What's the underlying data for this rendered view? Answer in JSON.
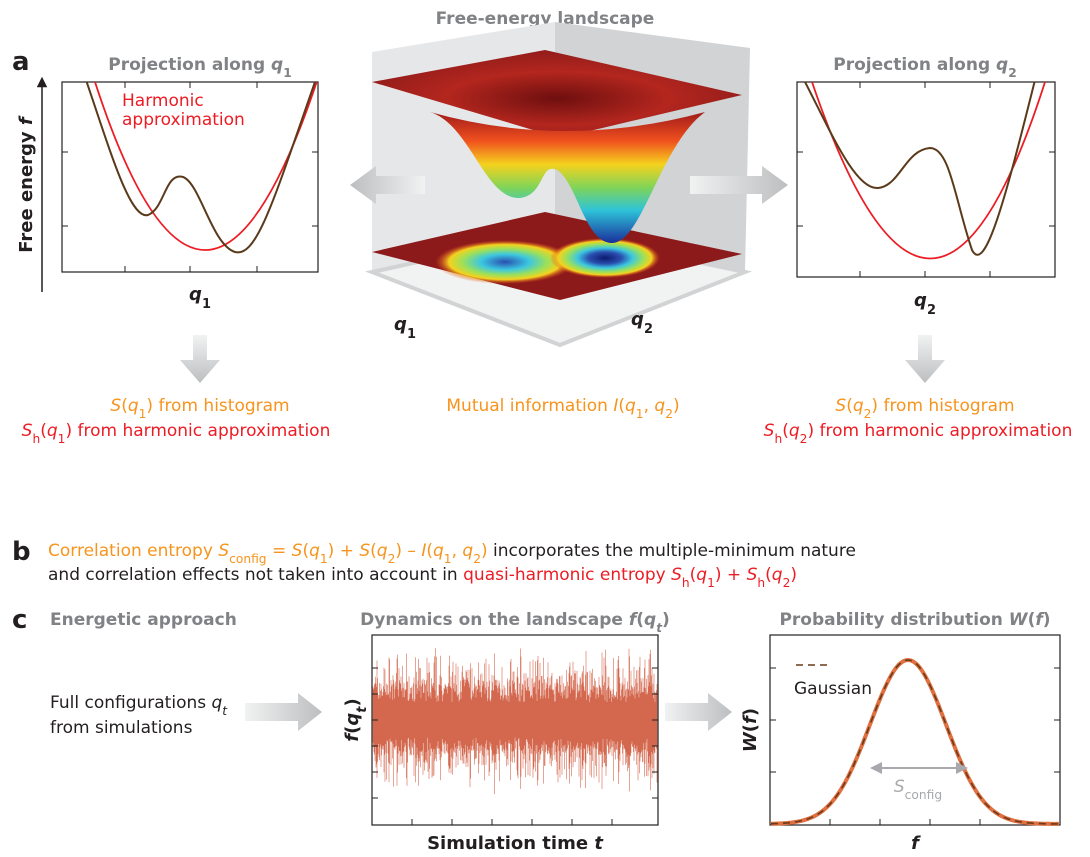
{
  "header": {
    "title": "Free-energy landscape"
  },
  "panel_a": {
    "label": "a",
    "left": {
      "title": [
        "Projection along ",
        {
          "t": "q",
          "s": "i"
        },
        {
          "t": "1",
          "s": "sub"
        }
      ],
      "y_axis": [
        "Free energy ",
        {
          "t": "f",
          "s": "i"
        }
      ],
      "x_axis": [
        {
          "t": "q",
          "s": "i"
        },
        {
          "t": "1",
          "s": "sub"
        }
      ],
      "annotation": [
        "Harmonic",
        "approximation"
      ]
    },
    "center": {
      "x_axis": [
        {
          "t": "q",
          "s": "i"
        },
        {
          "t": "1",
          "s": "sub"
        }
      ],
      "y_axis": [
        {
          "t": "q",
          "s": "i"
        },
        {
          "t": "2",
          "s": "sub"
        }
      ]
    },
    "right": {
      "title": [
        "Projection along ",
        {
          "t": "q",
          "s": "i"
        },
        {
          "t": "2",
          "s": "sub"
        }
      ],
      "x_axis": [
        {
          "t": "q",
          "s": "i"
        },
        {
          "t": "2",
          "s": "sub"
        }
      ]
    },
    "captions": {
      "left": [
        [
          {
            "t": "S",
            "s": "i"
          },
          "(",
          {
            "t": "q",
            "s": "i"
          },
          {
            "t": "1",
            "s": "sub"
          },
          ") from histogram"
        ],
        [
          {
            "t": "S",
            "s": "i"
          },
          {
            "t": "h",
            "s": "sub"
          },
          "(",
          {
            "t": "q",
            "s": "i"
          },
          {
            "t": "1",
            "s": "sub"
          },
          ") from harmonic approximation"
        ]
      ],
      "center": [
        "Mutual information ",
        {
          "t": "I",
          "s": "i"
        },
        "(",
        {
          "t": "q",
          "s": "i"
        },
        {
          "t": "1",
          "s": "sub"
        },
        ", ",
        {
          "t": "q",
          "s": "i"
        },
        {
          "t": "2",
          "s": "sub"
        },
        ")"
      ],
      "right": [
        [
          {
            "t": "S",
            "s": "i"
          },
          "(",
          {
            "t": "q",
            "s": "i"
          },
          {
            "t": "2",
            "s": "sub"
          },
          ") from histogram"
        ],
        [
          {
            "t": "S",
            "s": "i"
          },
          {
            "t": "h",
            "s": "sub"
          },
          "(",
          {
            "t": "q",
            "s": "i"
          },
          {
            "t": "2",
            "s": "sub"
          },
          ") from harmonic approximation"
        ]
      ]
    }
  },
  "panel_b": {
    "label": "b",
    "lines": [
      [
        {
          "color": "#f7941d",
          "runs": [
            "Correlation entropy ",
            {
              "t": "S",
              "s": "i"
            },
            {
              "t": "config",
              "s": "sub"
            },
            " = ",
            {
              "t": "S",
              "s": "i"
            },
            "(",
            {
              "t": "q",
              "s": "i"
            },
            {
              "t": "1",
              "s": "sub"
            },
            ") + ",
            {
              "t": "S",
              "s": "i"
            },
            "(",
            {
              "t": "q",
              "s": "i"
            },
            {
              "t": "2",
              "s": "sub"
            },
            ") – ",
            {
              "t": "I",
              "s": "i"
            },
            "(",
            {
              "t": "q",
              "s": "i"
            },
            {
              "t": "1",
              "s": "sub"
            },
            ", ",
            {
              "t": "q",
              "s": "i"
            },
            {
              "t": "2",
              "s": "sub"
            },
            ")"
          ]
        },
        {
          "color": "#231f20",
          "runs": [
            " incorporates the multiple-minimum nature"
          ]
        }
      ],
      [
        {
          "color": "#231f20",
          "runs": [
            "and correlation effects not taken into account in "
          ]
        },
        {
          "color": "#ed1c24",
          "runs": [
            "quasi-harmonic entropy ",
            {
              "t": "S",
              "s": "i"
            },
            {
              "t": "h",
              "s": "sub"
            },
            "(",
            {
              "t": "q",
              "s": "i"
            },
            {
              "t": "1",
              "s": "sub"
            },
            ") + ",
            {
              "t": "S",
              "s": "i"
            },
            {
              "t": "h",
              "s": "sub"
            },
            "(",
            {
              "t": "q",
              "s": "i"
            },
            {
              "t": "2",
              "s": "sub"
            },
            ")"
          ]
        }
      ]
    ]
  },
  "panel_c": {
    "label": "c",
    "left": {
      "title": "Energetic approach",
      "text": [
        [
          "Full configurations ",
          {
            "t": "q",
            "s": "i"
          },
          {
            "t": "t",
            "s": "isub"
          }
        ],
        "from simulations"
      ]
    },
    "middle": {
      "title": [
        "Dynamics on the landscape ",
        {
          "t": "f",
          "s": "i"
        },
        "(",
        {
          "t": "q",
          "s": "i"
        },
        {
          "t": "t",
          "s": "isub"
        },
        ")"
      ],
      "y_axis": [
        {
          "t": "f",
          "s": "i"
        },
        "(",
        {
          "t": "q",
          "s": "i"
        },
        {
          "t": "t",
          "s": "isub"
        },
        ")"
      ],
      "x_axis": [
        "Simulation time ",
        {
          "t": "t",
          "s": "i"
        }
      ]
    },
    "right": {
      "title": [
        "Probability distribution ",
        {
          "t": "W",
          "s": "i"
        },
        "(",
        {
          "t": "f",
          "s": "i"
        },
        ")"
      ],
      "y_axis": [
        {
          "t": "W",
          "s": "i"
        },
        "(",
        {
          "t": "f",
          "s": "i"
        },
        ")"
      ],
      "x_axis": [
        {
          "t": "f",
          "s": "i"
        }
      ],
      "legend": "Gaussian",
      "width_label": [
        {
          "t": "S",
          "s": "i"
        },
        {
          "t": "config",
          "s": "sub"
        }
      ]
    }
  }
}
